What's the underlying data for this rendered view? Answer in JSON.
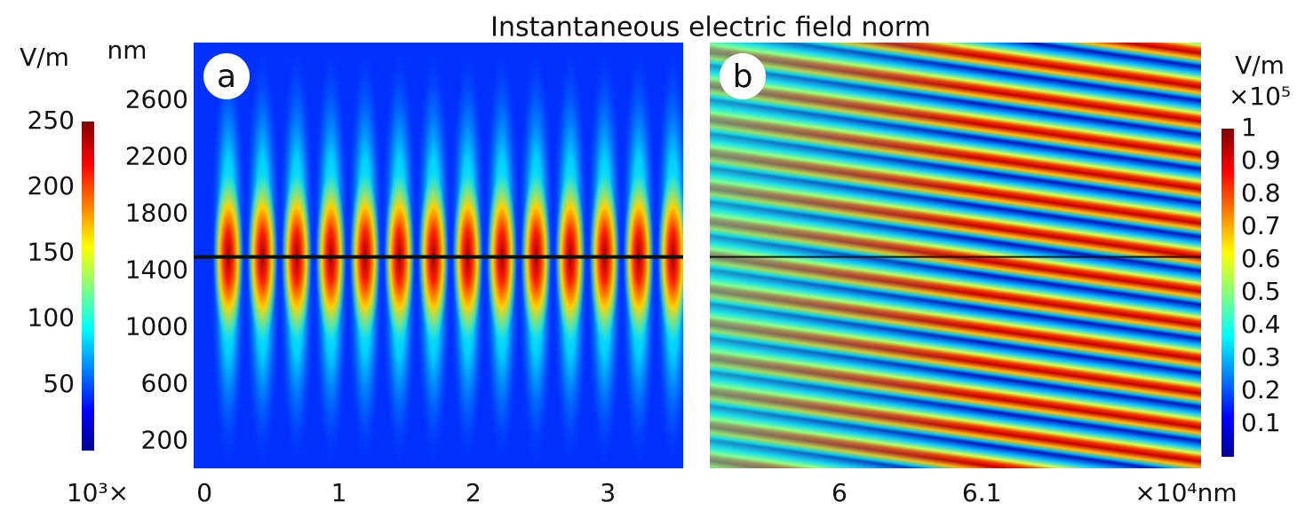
{
  "title": "Instantaneous electric field norm",
  "chart_data": [
    {
      "type": "heatmap",
      "panel_label": "a",
      "x_multiplier": "10³×",
      "y_unit": "nm",
      "xlim": [
        -0.08,
        3.56
      ],
      "xticks": [
        0,
        1,
        2,
        3
      ],
      "ylim": [
        10,
        3010
      ],
      "yticks": [
        200,
        600,
        1000,
        1400,
        1800,
        2200,
        2600
      ],
      "interface_y": 1500,
      "colorbar": {
        "label": "V/m",
        "clim": [
          0,
          250
        ],
        "ticks": [
          50,
          100,
          150,
          200,
          250
        ]
      }
    },
    {
      "type": "heatmap",
      "panel_label": "b",
      "x_unit": "×10⁴nm",
      "xlim": [
        5.909,
        6.254
      ],
      "xticks": [
        6,
        6.1
      ],
      "ylim": [
        10,
        3010
      ],
      "interface_y": 1500,
      "colorbar": {
        "label": "V/m",
        "multiplier": "×10⁵",
        "clim": [
          0,
          1
        ],
        "ticks": [
          0.1,
          0.2,
          0.3,
          0.4,
          0.5,
          0.6,
          0.7,
          0.8,
          0.9,
          1
        ]
      }
    }
  ]
}
